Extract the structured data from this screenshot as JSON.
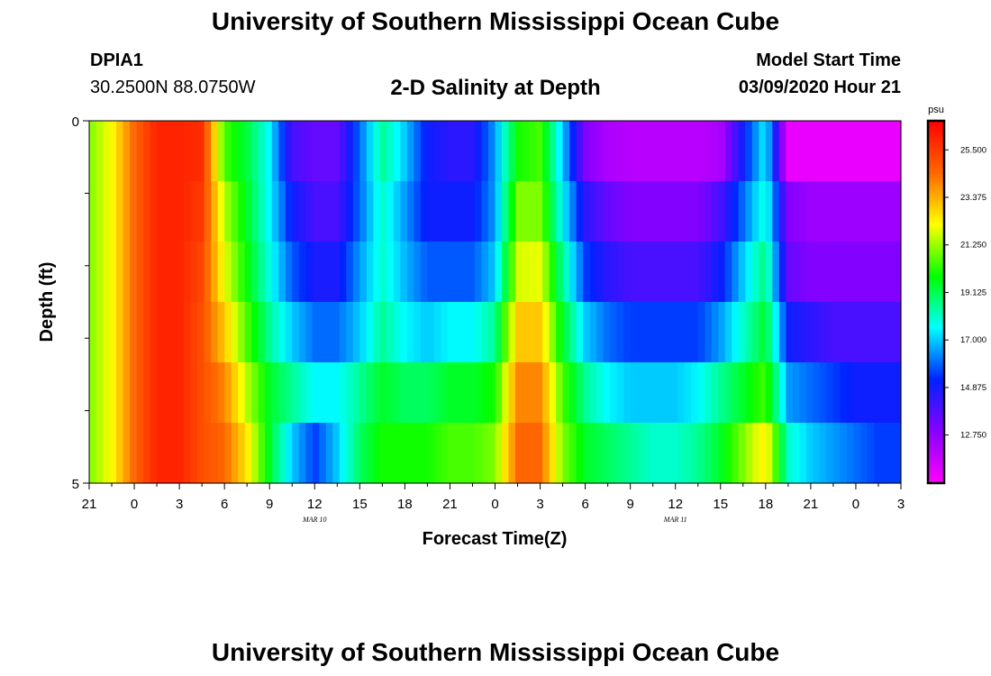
{
  "header": {
    "title": "University of Southern Mississippi Ocean Cube",
    "station": "DPIA1",
    "coords": "30.2500N 88.0750W",
    "subtitle": "2-D Salinity at Depth",
    "model_start_label": "Model Start Time",
    "model_start_value": "03/09/2020 Hour 21"
  },
  "footer": {
    "title": "University of Southern Mississippi Ocean Cube"
  },
  "colors": {
    "stops": [
      "#ff00ff",
      "#8800ff",
      "#0022ff",
      "#00ffff",
      "#00ff00",
      "#ffff00",
      "#ff6600",
      "#ff0000"
    ],
    "axis": "#000000"
  },
  "chart_data": {
    "type": "heatmap",
    "title": "2-D Salinity at Depth",
    "xlabel": "Forecast Time(Z)",
    "ylabel": "Depth (ft)",
    "x_tick_labels": [
      "21",
      "0",
      "3",
      "6",
      "9",
      "12",
      "15",
      "18",
      "21",
      "0",
      "3",
      "6",
      "9",
      "12",
      "15",
      "18",
      "21",
      "0",
      "3"
    ],
    "x_date_labels": [
      {
        "label": "MAR 10",
        "at_hour": 15
      },
      {
        "label": "MAR 11",
        "at_hour": 39
      }
    ],
    "x_range_hours": [
      0,
      54
    ],
    "y_tick_labels": [
      "0",
      "5"
    ],
    "y_range": [
      0,
      5
    ],
    "colorbar": {
      "unit": "psu",
      "range": [
        10.6,
        26.8
      ],
      "tick_labels": [
        "12.750",
        "14.875",
        "17.000",
        "19.125",
        "21.250",
        "23.375",
        "25.500"
      ],
      "tick_values": [
        12.75,
        14.875,
        17.0,
        19.125,
        21.25,
        23.375,
        25.5
      ]
    },
    "key_hours": [
      0,
      1.5,
      3,
      4.5,
      6,
      7.5,
      9,
      10.5,
      12,
      13.5,
      15,
      16.5,
      18,
      19.5,
      21,
      22.5,
      24,
      25.5,
      27,
      28.5,
      30,
      31.5,
      33,
      34.5,
      36,
      37.5,
      39,
      40.5,
      42,
      43.5,
      45,
      46.5,
      48,
      49.5,
      51,
      52.5,
      54
    ],
    "depth_layers": [
      {
        "layer": 1,
        "salinity": [
          21.0,
          22.2,
          24.5,
          26.0,
          26.0,
          25.8,
          20.5,
          19.3,
          17.5,
          14.0,
          13.5,
          13.5,
          16.0,
          18.5,
          17.0,
          15.0,
          14.5,
          14.5,
          16.5,
          20.0,
          20.5,
          17.0,
          13.0,
          12.2,
          12.0,
          12.0,
          12.0,
          12.0,
          12.2,
          15.0,
          17.5,
          11.0,
          11.0,
          11.0,
          11.0,
          11.0,
          11.0
        ]
      },
      {
        "layer": 2,
        "salinity": [
          21.0,
          22.2,
          24.5,
          26.0,
          26.0,
          25.5,
          21.5,
          19.5,
          17.5,
          15.0,
          14.0,
          14.0,
          16.0,
          18.0,
          16.5,
          15.0,
          15.0,
          15.0,
          16.5,
          21.0,
          21.0,
          17.5,
          14.5,
          13.5,
          13.0,
          13.0,
          13.0,
          13.0,
          14.0,
          16.0,
          18.0,
          13.0,
          12.5,
          12.5,
          12.5,
          12.5,
          12.5
        ]
      },
      {
        "layer": 3,
        "salinity": [
          21.0,
          22.2,
          24.5,
          26.0,
          26.0,
          25.2,
          22.0,
          19.8,
          17.8,
          15.8,
          14.8,
          14.8,
          16.5,
          18.0,
          16.8,
          15.8,
          15.8,
          15.8,
          17.0,
          21.8,
          22.0,
          18.5,
          15.5,
          14.5,
          14.0,
          14.0,
          14.0,
          14.0,
          15.0,
          17.0,
          18.8,
          13.5,
          13.0,
          13.0,
          13.0,
          13.0,
          13.0
        ]
      },
      {
        "layer": 4,
        "salinity": [
          21.0,
          22.2,
          24.5,
          26.0,
          26.0,
          25.0,
          23.0,
          20.5,
          18.5,
          17.0,
          16.0,
          16.0,
          17.0,
          18.5,
          17.5,
          17.0,
          17.5,
          17.5,
          18.5,
          23.0,
          23.0,
          19.5,
          17.0,
          16.0,
          15.5,
          15.5,
          15.5,
          15.5,
          16.5,
          18.0,
          19.5,
          15.0,
          14.5,
          14.0,
          14.0,
          14.0,
          14.0
        ]
      },
      {
        "layer": 5,
        "salinity": [
          21.0,
          22.2,
          24.5,
          26.0,
          26.0,
          25.0,
          24.0,
          21.5,
          19.5,
          18.5,
          17.5,
          17.5,
          18.5,
          19.5,
          19.0,
          19.0,
          19.5,
          19.5,
          20.0,
          24.0,
          24.0,
          20.5,
          18.5,
          17.5,
          17.0,
          17.0,
          17.0,
          17.5,
          18.5,
          19.5,
          20.5,
          16.5,
          16.0,
          15.5,
          15.0,
          15.0,
          15.0
        ]
      },
      {
        "layer": 6,
        "salinity": [
          21.0,
          22.2,
          24.5,
          26.0,
          26.0,
          25.0,
          24.5,
          22.5,
          19.5,
          17.0,
          15.5,
          17.0,
          19.0,
          20.0,
          20.0,
          20.0,
          20.5,
          20.5,
          21.0,
          24.5,
          24.5,
          21.0,
          19.5,
          19.0,
          18.5,
          18.0,
          18.0,
          18.5,
          19.5,
          21.0,
          22.5,
          18.0,
          17.0,
          16.5,
          16.0,
          15.5,
          15.5
        ]
      }
    ]
  }
}
